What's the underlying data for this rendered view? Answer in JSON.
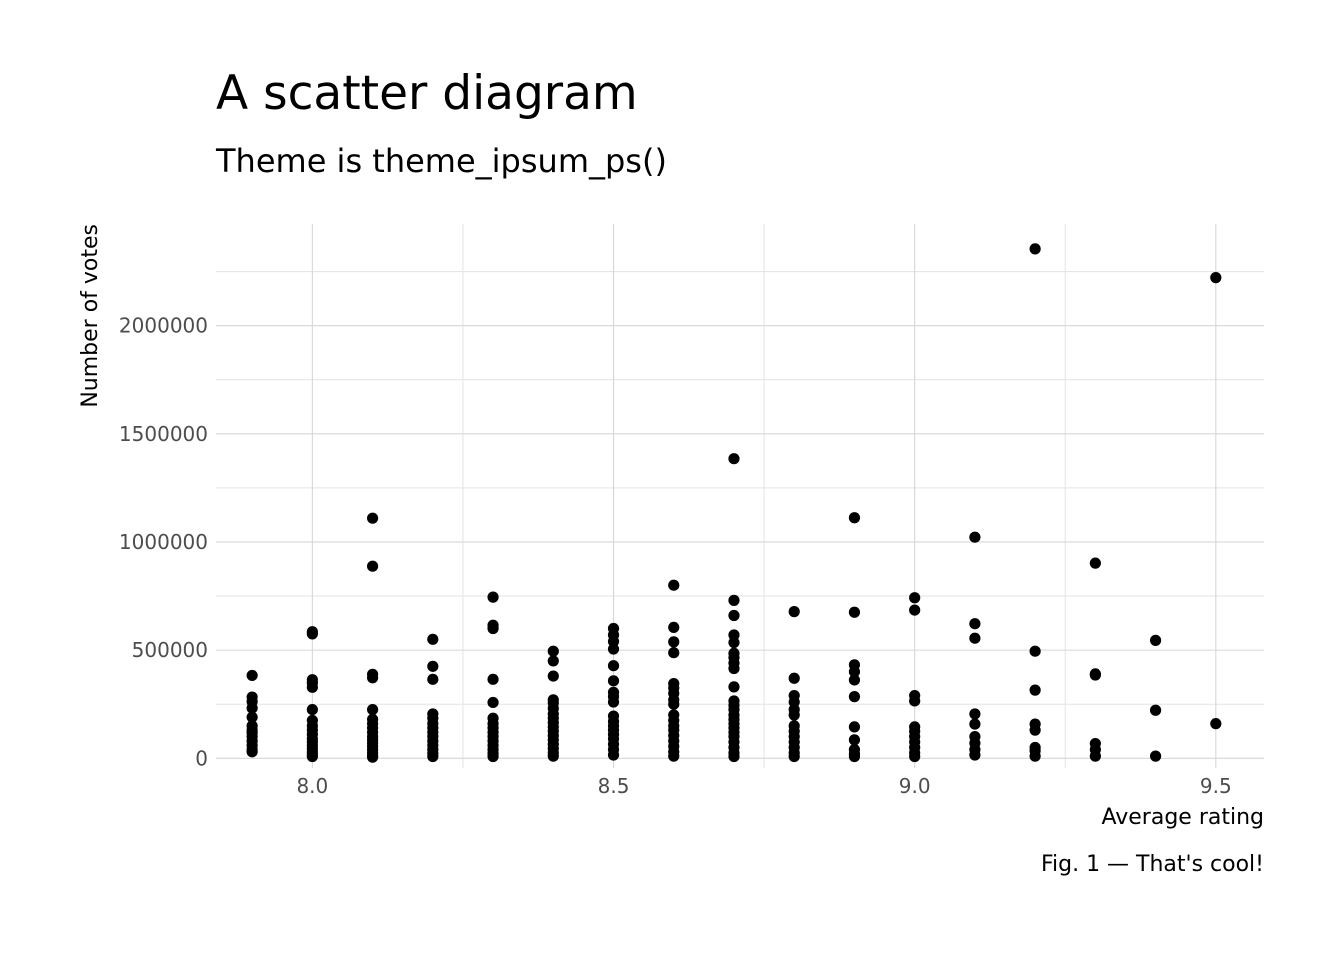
{
  "chart_data": {
    "type": "scatter",
    "title": "A scatter diagram",
    "subtitle": "Theme is theme_ipsum_ps()",
    "caption": "Fig. 1 — That's cool!",
    "xlabel": "Average rating",
    "ylabel": "Number of votes",
    "xlim": [
      7.84,
      9.58
    ],
    "ylim": [
      -45000,
      2470000
    ],
    "x_ticks": [
      8.0,
      8.5,
      9.0,
      9.5
    ],
    "x_tick_labels": [
      "8.0",
      "8.5",
      "9.0",
      "9.5"
    ],
    "y_ticks": [
      0,
      500000,
      1000000,
      1500000,
      2000000
    ],
    "y_tick_labels": [
      "0",
      "500000",
      "1000000",
      "1500000",
      "2000000"
    ],
    "grid": true,
    "point_color": "#000000",
    "points": [
      [
        7.9,
        383000
      ],
      [
        7.9,
        283000
      ],
      [
        7.9,
        262000
      ],
      [
        7.9,
        232000
      ],
      [
        7.9,
        190000
      ],
      [
        7.9,
        150000
      ],
      [
        7.9,
        130000
      ],
      [
        7.9,
        118000
      ],
      [
        7.9,
        100000
      ],
      [
        7.9,
        80000
      ],
      [
        7.9,
        60000
      ],
      [
        7.9,
        40000
      ],
      [
        7.9,
        30000
      ],
      [
        8.0,
        585000
      ],
      [
        8.0,
        575000
      ],
      [
        8.0,
        363000
      ],
      [
        8.0,
        348000
      ],
      [
        8.0,
        328000
      ],
      [
        8.0,
        225000
      ],
      [
        8.0,
        175000
      ],
      [
        8.0,
        150000
      ],
      [
        8.0,
        130000
      ],
      [
        8.0,
        110000
      ],
      [
        8.0,
        90000
      ],
      [
        8.0,
        75000
      ],
      [
        8.0,
        60000
      ],
      [
        8.0,
        45000
      ],
      [
        8.0,
        30000
      ],
      [
        8.0,
        18000
      ],
      [
        8.0,
        8000
      ],
      [
        8.1,
        1110000
      ],
      [
        8.1,
        888000
      ],
      [
        8.1,
        388000
      ],
      [
        8.1,
        372000
      ],
      [
        8.1,
        225000
      ],
      [
        8.1,
        180000
      ],
      [
        8.1,
        160000
      ],
      [
        8.1,
        140000
      ],
      [
        8.1,
        120000
      ],
      [
        8.1,
        100000
      ],
      [
        8.1,
        85000
      ],
      [
        8.1,
        70000
      ],
      [
        8.1,
        55000
      ],
      [
        8.1,
        40000
      ],
      [
        8.1,
        25000
      ],
      [
        8.1,
        12000
      ],
      [
        8.1,
        5000
      ],
      [
        8.2,
        550000
      ],
      [
        8.2,
        425000
      ],
      [
        8.2,
        365000
      ],
      [
        8.2,
        205000
      ],
      [
        8.2,
        185000
      ],
      [
        8.2,
        160000
      ],
      [
        8.2,
        140000
      ],
      [
        8.2,
        120000
      ],
      [
        8.2,
        100000
      ],
      [
        8.2,
        80000
      ],
      [
        8.2,
        60000
      ],
      [
        8.2,
        40000
      ],
      [
        8.2,
        22000
      ],
      [
        8.2,
        8000
      ],
      [
        8.3,
        745000
      ],
      [
        8.3,
        615000
      ],
      [
        8.3,
        600000
      ],
      [
        8.3,
        365000
      ],
      [
        8.3,
        258000
      ],
      [
        8.3,
        185000
      ],
      [
        8.3,
        160000
      ],
      [
        8.3,
        140000
      ],
      [
        8.3,
        120000
      ],
      [
        8.3,
        100000
      ],
      [
        8.3,
        80000
      ],
      [
        8.3,
        60000
      ],
      [
        8.3,
        40000
      ],
      [
        8.3,
        22000
      ],
      [
        8.3,
        8000
      ],
      [
        8.4,
        495000
      ],
      [
        8.4,
        450000
      ],
      [
        8.4,
        380000
      ],
      [
        8.4,
        270000
      ],
      [
        8.4,
        255000
      ],
      [
        8.4,
        230000
      ],
      [
        8.4,
        205000
      ],
      [
        8.4,
        185000
      ],
      [
        8.4,
        165000
      ],
      [
        8.4,
        145000
      ],
      [
        8.4,
        125000
      ],
      [
        8.4,
        105000
      ],
      [
        8.4,
        85000
      ],
      [
        8.4,
        65000
      ],
      [
        8.4,
        45000
      ],
      [
        8.4,
        25000
      ],
      [
        8.4,
        10000
      ],
      [
        8.5,
        600000
      ],
      [
        8.5,
        570000
      ],
      [
        8.5,
        540000
      ],
      [
        8.5,
        505000
      ],
      [
        8.5,
        428000
      ],
      [
        8.5,
        358000
      ],
      [
        8.5,
        305000
      ],
      [
        8.5,
        285000
      ],
      [
        8.5,
        260000
      ],
      [
        8.5,
        195000
      ],
      [
        8.5,
        170000
      ],
      [
        8.5,
        150000
      ],
      [
        8.5,
        130000
      ],
      [
        8.5,
        110000
      ],
      [
        8.5,
        90000
      ],
      [
        8.5,
        65000
      ],
      [
        8.5,
        40000
      ],
      [
        8.5,
        15000
      ],
      [
        8.6,
        800000
      ],
      [
        8.6,
        605000
      ],
      [
        8.6,
        538000
      ],
      [
        8.6,
        488000
      ],
      [
        8.6,
        345000
      ],
      [
        8.6,
        325000
      ],
      [
        8.6,
        300000
      ],
      [
        8.6,
        270000
      ],
      [
        8.6,
        250000
      ],
      [
        8.6,
        200000
      ],
      [
        8.6,
        175000
      ],
      [
        8.6,
        150000
      ],
      [
        8.6,
        130000
      ],
      [
        8.6,
        105000
      ],
      [
        8.6,
        80000
      ],
      [
        8.6,
        55000
      ],
      [
        8.6,
        30000
      ],
      [
        8.6,
        10000
      ],
      [
        8.7,
        1385000
      ],
      [
        8.7,
        730000
      ],
      [
        8.7,
        660000
      ],
      [
        8.7,
        570000
      ],
      [
        8.7,
        535000
      ],
      [
        8.7,
        485000
      ],
      [
        8.7,
        465000
      ],
      [
        8.7,
        440000
      ],
      [
        8.7,
        415000
      ],
      [
        8.7,
        330000
      ],
      [
        8.7,
        265000
      ],
      [
        8.7,
        245000
      ],
      [
        8.7,
        225000
      ],
      [
        8.7,
        200000
      ],
      [
        8.7,
        180000
      ],
      [
        8.7,
        160000
      ],
      [
        8.7,
        140000
      ],
      [
        8.7,
        120000
      ],
      [
        8.7,
        100000
      ],
      [
        8.7,
        75000
      ],
      [
        8.7,
        50000
      ],
      [
        8.7,
        25000
      ],
      [
        8.7,
        8000
      ],
      [
        8.8,
        678000
      ],
      [
        8.8,
        370000
      ],
      [
        8.8,
        290000
      ],
      [
        8.8,
        260000
      ],
      [
        8.8,
        225000
      ],
      [
        8.8,
        200000
      ],
      [
        8.8,
        150000
      ],
      [
        8.8,
        125000
      ],
      [
        8.8,
        100000
      ],
      [
        8.8,
        75000
      ],
      [
        8.8,
        50000
      ],
      [
        8.8,
        25000
      ],
      [
        8.8,
        8000
      ],
      [
        8.9,
        1112000
      ],
      [
        8.9,
        675000
      ],
      [
        8.9,
        432000
      ],
      [
        8.9,
        400000
      ],
      [
        8.9,
        362000
      ],
      [
        8.9,
        285000
      ],
      [
        8.9,
        145000
      ],
      [
        8.9,
        85000
      ],
      [
        8.9,
        40000
      ],
      [
        8.9,
        20000
      ],
      [
        8.9,
        8000
      ],
      [
        9.0,
        742000
      ],
      [
        9.0,
        685000
      ],
      [
        9.0,
        290000
      ],
      [
        9.0,
        265000
      ],
      [
        9.0,
        145000
      ],
      [
        9.0,
        125000
      ],
      [
        9.0,
        100000
      ],
      [
        9.0,
        75000
      ],
      [
        9.0,
        50000
      ],
      [
        9.0,
        25000
      ],
      [
        9.0,
        8000
      ],
      [
        9.1,
        1022000
      ],
      [
        9.1,
        622000
      ],
      [
        9.1,
        555000
      ],
      [
        9.1,
        205000
      ],
      [
        9.1,
        158000
      ],
      [
        9.1,
        100000
      ],
      [
        9.1,
        70000
      ],
      [
        9.1,
        40000
      ],
      [
        9.1,
        15000
      ],
      [
        9.2,
        2355000
      ],
      [
        9.2,
        495000
      ],
      [
        9.2,
        315000
      ],
      [
        9.2,
        158000
      ],
      [
        9.2,
        130000
      ],
      [
        9.2,
        50000
      ],
      [
        9.2,
        35000
      ],
      [
        9.2,
        10000
      ],
      [
        9.3,
        902000
      ],
      [
        9.3,
        390000
      ],
      [
        9.3,
        385000
      ],
      [
        9.3,
        68000
      ],
      [
        9.3,
        40000
      ],
      [
        9.3,
        10000
      ],
      [
        9.4,
        545000
      ],
      [
        9.4,
        222000
      ],
      [
        9.4,
        10000
      ],
      [
        9.5,
        2222000
      ],
      [
        9.5,
        160000
      ]
    ]
  }
}
